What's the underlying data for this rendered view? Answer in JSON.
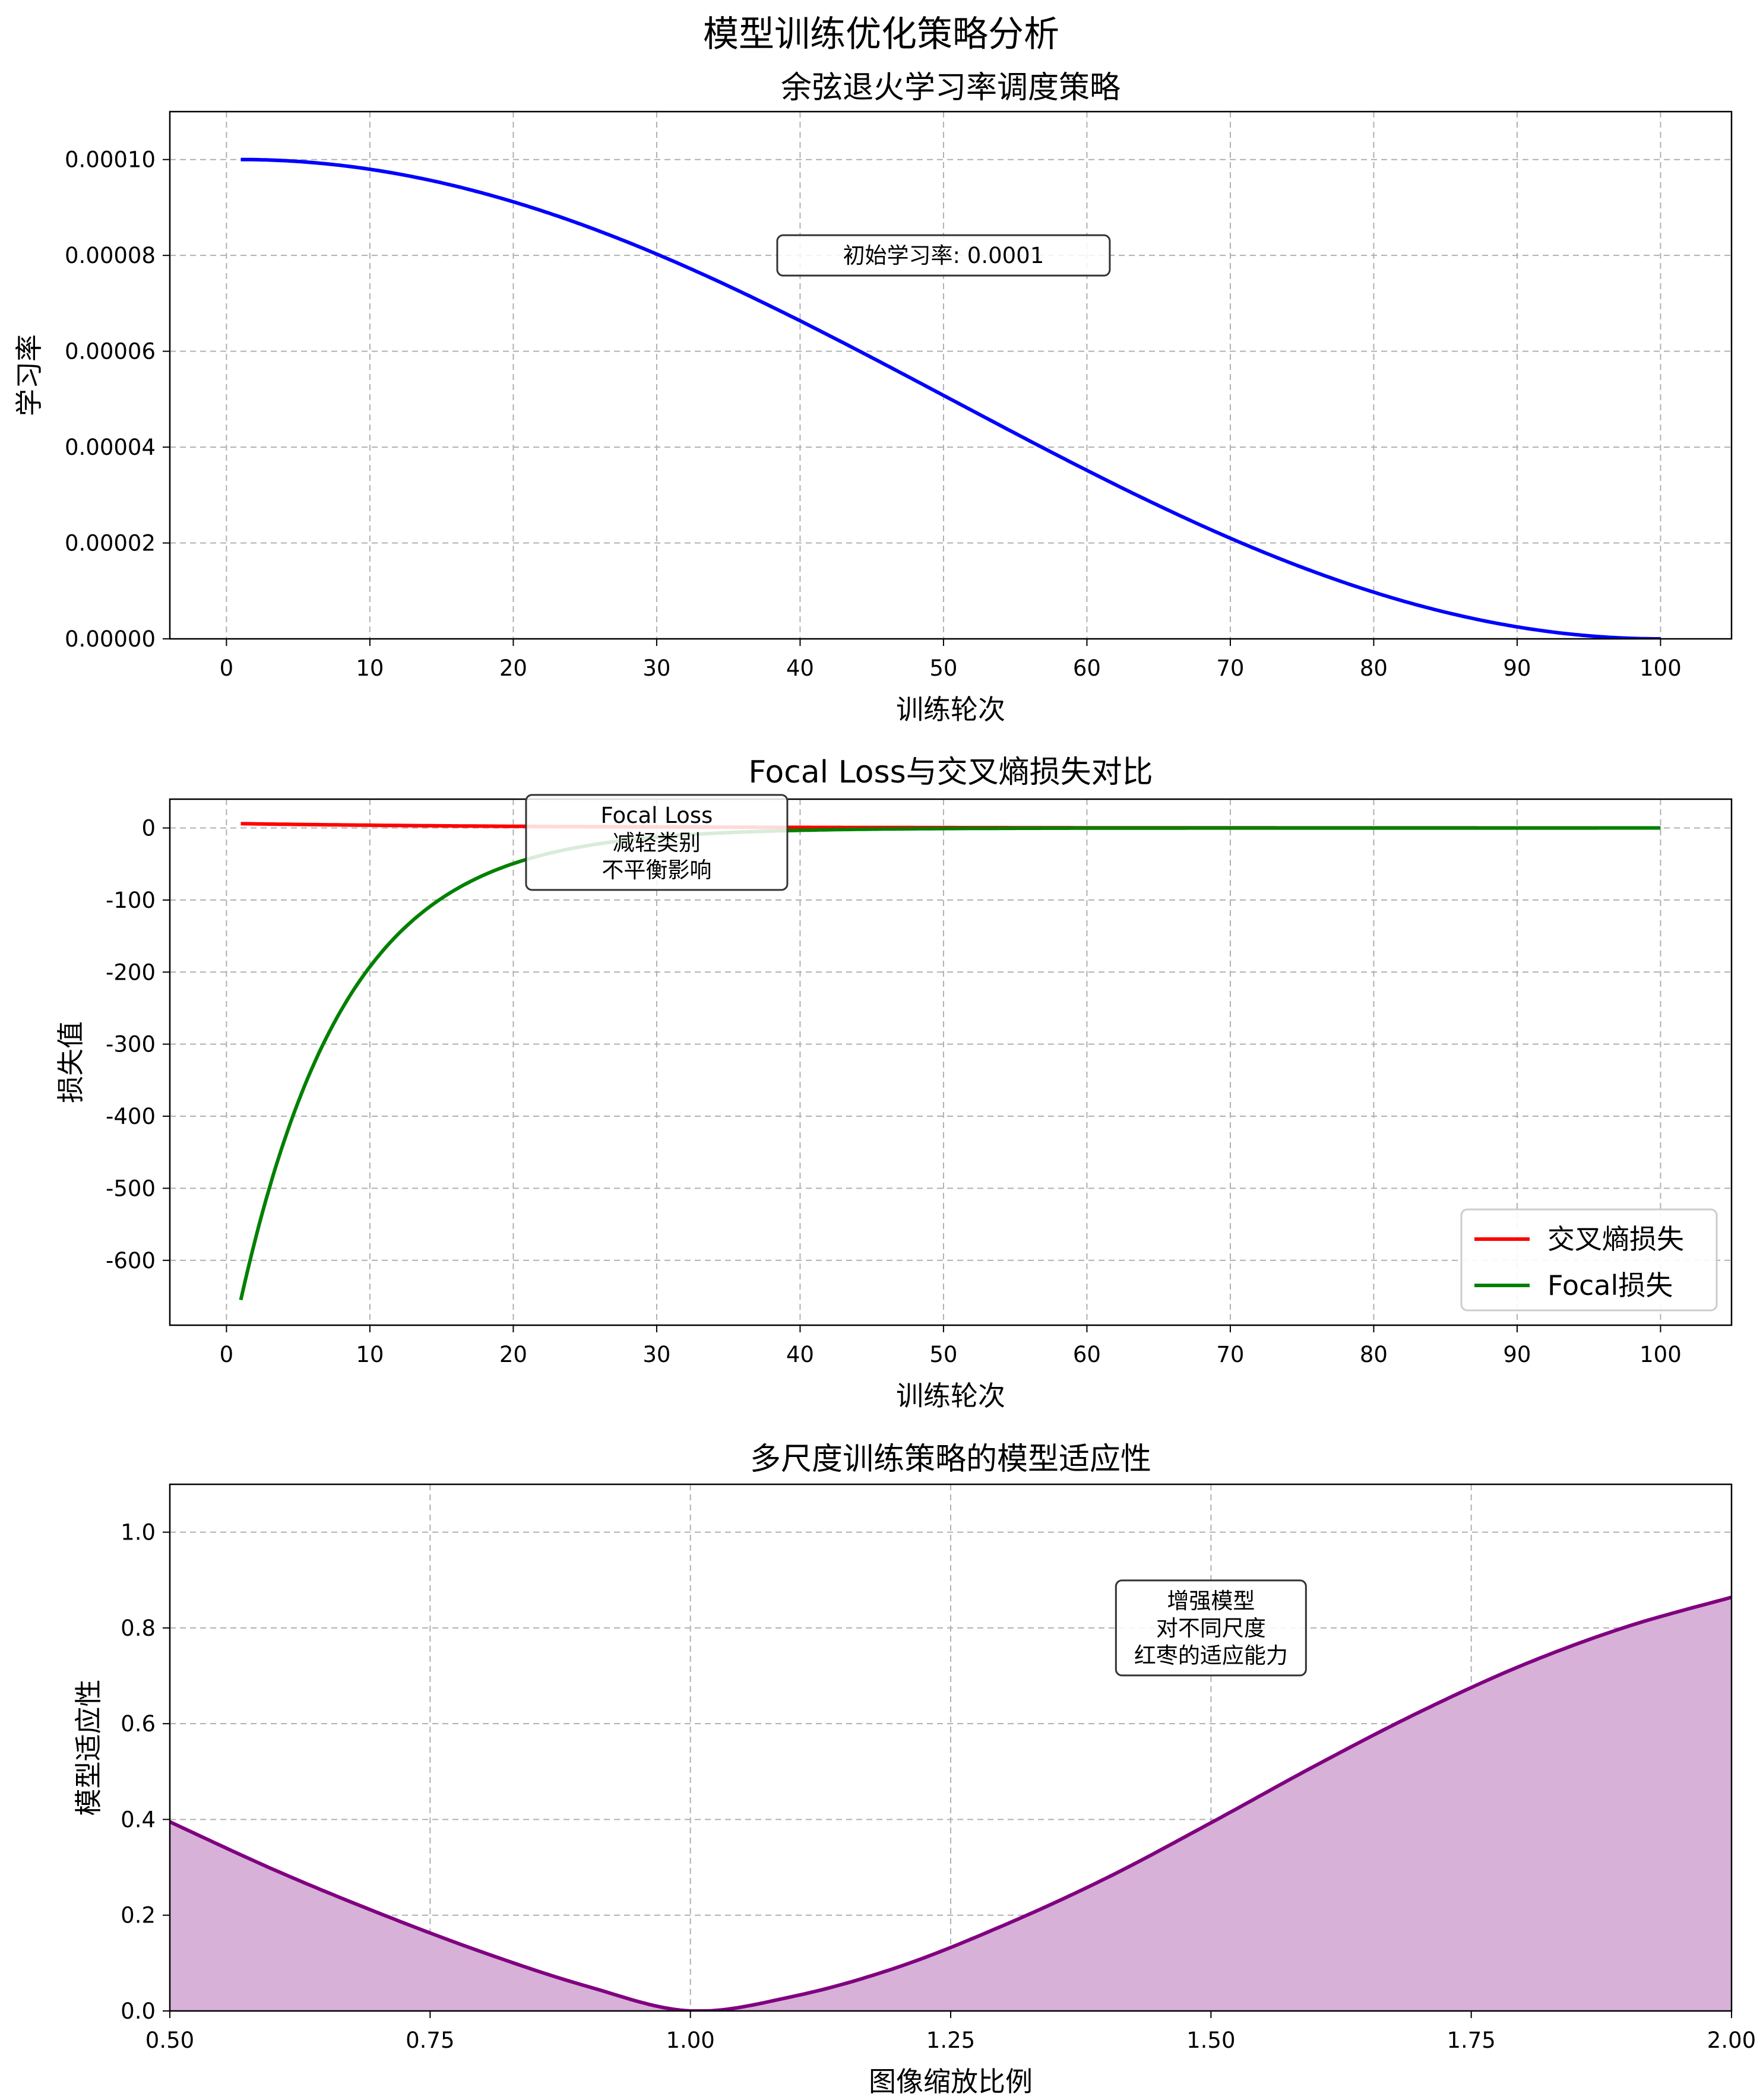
{
  "figure_title": "模型训练优化策略分析",
  "chart_data": [
    {
      "type": "line",
      "title": "余弦退火学习率调度策略",
      "xlabel": "训练轮次",
      "ylabel": "学习率",
      "xlim": [
        -3.95,
        104.95
      ],
      "ylim": [
        0,
        0.00011
      ],
      "xticks": [
        0,
        10,
        20,
        30,
        40,
        50,
        60,
        70,
        80,
        90,
        100
      ],
      "xtick_labels": [
        "0",
        "10",
        "20",
        "30",
        "40",
        "50",
        "60",
        "70",
        "80",
        "90",
        "100"
      ],
      "yticks": [
        0,
        2e-05,
        4e-05,
        6e-05,
        8e-05,
        0.0001
      ],
      "ytick_labels": [
        "0.00000",
        "0.00002",
        "0.00004",
        "0.00006",
        "0.00008",
        "0.00010"
      ],
      "grid": true,
      "series": [
        {
          "color": "#0000ff",
          "formula": "1e-4 * (1 + cos(pi * (x - 1) / 99)) / 2",
          "x_range": [
            1,
            100
          ]
        }
      ],
      "annotations": [
        {
          "text": "初始学习率: 0.0001",
          "x": 50,
          "y": 8e-05
        }
      ]
    },
    {
      "type": "line",
      "title": "Focal Loss与交叉熵损失对比",
      "xlabel": "训练轮次",
      "ylabel": "损失值",
      "xlim": [
        -3.95,
        104.95
      ],
      "ylim": [
        -690,
        40
      ],
      "xticks": [
        0,
        10,
        20,
        30,
        40,
        50,
        60,
        70,
        80,
        90,
        100
      ],
      "xtick_labels": [
        "0",
        "10",
        "20",
        "30",
        "40",
        "50",
        "60",
        "70",
        "80",
        "90",
        "100"
      ],
      "yticks": [
        0,
        -100,
        -200,
        -300,
        -400,
        -500,
        -600
      ],
      "ytick_labels": [
        "0",
        "-100",
        "-200",
        "-300",
        "-400",
        "-500",
        "-600"
      ],
      "grid": true,
      "legend": {
        "position": "lower-right",
        "entries": [
          "交叉熵损失",
          "Focal损失"
        ]
      },
      "series": [
        {
          "name": "交叉熵损失",
          "color": "#ff0000",
          "formula": "6 * exp(-0.05 * (x - 1))",
          "x_range": [
            1,
            100
          ]
        },
        {
          "name": "Focal损失",
          "color": "#008000",
          "formula": "-655 * exp(-0.136 * (x - 1))",
          "x_range": [
            1,
            100
          ]
        }
      ],
      "annotations": [
        {
          "lines": [
            "Focal Loss",
            "减轻类别",
            "不平衡影响"
          ],
          "x": 30,
          "y": -20
        }
      ]
    },
    {
      "type": "area",
      "title": "多尺度训练策略的模型适应性",
      "xlabel": "图像缩放比例",
      "ylabel": "模型适应性",
      "xlim": [
        0.5,
        2.0
      ],
      "ylim": [
        0,
        1.1
      ],
      "xticks": [
        0.5,
        0.75,
        1.0,
        1.25,
        1.5,
        1.75,
        2.0
      ],
      "xtick_labels": [
        "0.50",
        "0.75",
        "1.00",
        "1.25",
        "1.50",
        "1.75",
        "2.00"
      ],
      "yticks": [
        0,
        0.2,
        0.4,
        0.6,
        0.8,
        1.0
      ],
      "ytick_labels": [
        "0.0",
        "0.2",
        "0.4",
        "0.6",
        "0.8",
        "1.0"
      ],
      "grid": true,
      "series": [
        {
          "color": "#800080",
          "fill": "#d7b1d8",
          "formula": "1 - cos(x - 1)^2 ... fitted: sin(pi*(x-1)/2.3)^2 * k",
          "x_range": [
            0.5,
            2.0
          ],
          "points": [
            [
              0.5,
              0.395
            ],
            [
              0.6,
              0.295
            ],
            [
              0.7,
              0.205
            ],
            [
              0.8,
              0.123
            ],
            [
              0.9,
              0.052
            ],
            [
              1.0,
              0.0
            ],
            [
              1.1,
              0.031
            ],
            [
              1.2,
              0.092
            ],
            [
              1.3,
              0.178
            ],
            [
              1.4,
              0.278
            ],
            [
              1.5,
              0.393
            ],
            [
              1.6,
              0.512
            ],
            [
              1.7,
              0.624
            ],
            [
              1.8,
              0.723
            ],
            [
              1.9,
              0.803
            ],
            [
              2.0,
              0.864
            ]
          ]
        }
      ],
      "annotations": [
        {
          "lines": [
            "增强模型",
            "对不同尺度",
            "红枣的适应能力"
          ],
          "x": 1.5,
          "y": 0.8
        }
      ]
    }
  ]
}
